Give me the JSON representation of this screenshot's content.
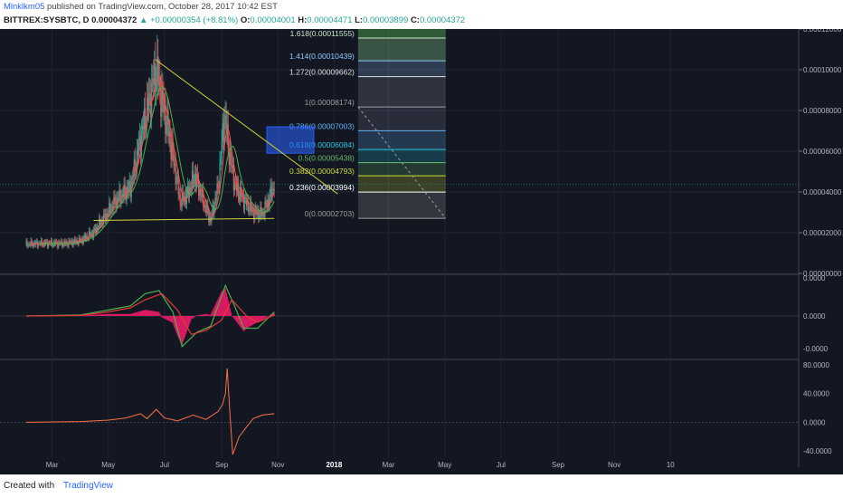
{
  "header": {
    "author": "Mlnklkm05",
    "published_text": "published on TradingView.com, October 28, 2017 10:42 EST",
    "symbol": "BITTREX:SYSBTC, D",
    "last": "0.00004372",
    "change": "▲ +0.00000354 (+8.81%)",
    "o_label": "O:",
    "o": "0.00004001",
    "h_label": "H:",
    "h": "0.00004471",
    "l_label": "L:",
    "l": "0.00003899",
    "c_label": "C:",
    "c": "0.00004372"
  },
  "footer": {
    "created_with": "Created with",
    "brand": "TradingView"
  },
  "chart_data": [
    {
      "type": "candlestick",
      "pane": "price",
      "ylim": [
        0,
        0.00012
      ],
      "y_ticks": [
        "0.00012000",
        "0.00010000",
        "0.00008000",
        "0.00006000",
        "0.00004000",
        "0.00002000",
        "0.00000000"
      ],
      "approx_close_path": [
        {
          "x": "2017-02-01",
          "y": 1.43e-05
        },
        {
          "x": "2017-02-20",
          "y": 1.47e-05
        },
        {
          "x": "2017-03-15",
          "y": 1.46e-05
        },
        {
          "x": "2017-04-01",
          "y": 1.6e-05
        },
        {
          "x": "2017-04-15",
          "y": 2e-05
        },
        {
          "x": "2017-05-01",
          "y": 3e-05
        },
        {
          "x": "2017-05-10",
          "y": 3.6e-05
        },
        {
          "x": "2017-05-25",
          "y": 4.2e-05
        },
        {
          "x": "2017-06-05",
          "y": 6.6e-05
        },
        {
          "x": "2017-06-15",
          "y": 8.6e-05
        },
        {
          "x": "2017-06-22",
          "y": 0.0001
        },
        {
          "x": "2017-06-28",
          "y": 8.5e-05
        },
        {
          "x": "2017-07-05",
          "y": 7e-05
        },
        {
          "x": "2017-07-12",
          "y": 5.2e-05
        },
        {
          "x": "2017-07-18",
          "y": 3.5e-05
        },
        {
          "x": "2017-07-25",
          "y": 3.8e-05
        },
        {
          "x": "2017-08-03",
          "y": 4.8e-05
        },
        {
          "x": "2017-08-12",
          "y": 3.5e-05
        },
        {
          "x": "2017-08-20",
          "y": 2.6e-05
        },
        {
          "x": "2017-08-28",
          "y": 4.2e-05
        },
        {
          "x": "2017-09-04",
          "y": 7.8e-05
        },
        {
          "x": "2017-09-10",
          "y": 5.6e-05
        },
        {
          "x": "2017-09-16",
          "y": 4.2e-05
        },
        {
          "x": "2017-09-25",
          "y": 3.6e-05
        },
        {
          "x": "2017-10-05",
          "y": 3e-05
        },
        {
          "x": "2017-10-15",
          "y": 2.9e-05
        },
        {
          "x": "2017-10-22",
          "y": 3.6e-05
        },
        {
          "x": "2017-10-28",
          "y": 4.37e-05
        }
      ],
      "fib_levels": [
        {
          "label": "1.618(0.00011555)",
          "value": 0.00011555,
          "color": "#c8e6c9"
        },
        {
          "label": "1.414(0.00010439)",
          "value": 0.00010439,
          "color": "#90caf9"
        },
        {
          "label": "1.272(0.00009662)",
          "value": 9.662e-05,
          "color": "#e0e0e0"
        },
        {
          "label": "1(0.00008174)",
          "value": 8.174e-05,
          "color": "#9e9e9e"
        },
        {
          "label": "0.786(0.00007003)",
          "value": 7.003e-05,
          "color": "#64b5f6"
        },
        {
          "label": "0.618(0.00006084)",
          "value": 6.084e-05,
          "color": "#26c6da"
        },
        {
          "label": "0.5(0.00005438)",
          "value": 5.438e-05,
          "color": "#66bb6a"
        },
        {
          "label": "0.382(0.00004793)",
          "value": 4.793e-05,
          "color": "#cddc39"
        },
        {
          "label": "0.236(0.00003994)",
          "value": 3.994e-05,
          "color": "#ffffff"
        },
        {
          "label": "0(0.00002703)",
          "value": 2.703e-05,
          "color": "#9e9e9e"
        }
      ],
      "trendlines": [
        {
          "name": "upper",
          "points": [
            {
              "x": "2017-06-21",
              "y": 0.000105
            },
            {
              "x": "2018-01-05",
              "y": 3.9e-05
            }
          ]
        },
        {
          "name": "lower",
          "points": [
            {
              "x": "2017-04-15",
              "y": 2.6e-05
            },
            {
              "x": "2017-10-28",
              "y": 2.7e-05
            }
          ]
        }
      ],
      "target_box": {
        "x0": "2017-10-20",
        "x1": "2017-12-10",
        "y0": 5.9e-05,
        "y1": 7.2e-05
      }
    },
    {
      "type": "line",
      "pane": "macd",
      "ylim": [
        -4e-05,
        4e-05
      ],
      "y_ticks": [
        "0.0000",
        "0.0000",
        "-0.0000"
      ],
      "series": [
        {
          "color": "#4caf50",
          "values": [
            {
              "x": "2017-02-01",
              "y": 0
            },
            {
              "x": "2017-04-01",
              "y": 1e-06
            },
            {
              "x": "2017-05-01",
              "y": 6e-06
            },
            {
              "x": "2017-05-25",
              "y": 1e-05
            },
            {
              "x": "2017-06-10",
              "y": 2.2e-05
            },
            {
              "x": "2017-06-25",
              "y": 2.5e-05
            },
            {
              "x": "2017-07-10",
              "y": 4e-06
            },
            {
              "x": "2017-07-20",
              "y": -3e-05
            },
            {
              "x": "2017-08-05",
              "y": -1.6e-05
            },
            {
              "x": "2017-08-20",
              "y": -1e-05
            },
            {
              "x": "2017-09-05",
              "y": 3e-05
            },
            {
              "x": "2017-09-15",
              "y": 1e-05
            },
            {
              "x": "2017-09-25",
              "y": -1.2e-05
            },
            {
              "x": "2017-10-10",
              "y": -1.2e-05
            },
            {
              "x": "2017-10-28",
              "y": 4e-06
            }
          ]
        },
        {
          "color": "#e53935",
          "values": [
            {
              "x": "2017-02-01",
              "y": 0
            },
            {
              "x": "2017-04-01",
              "y": 5e-07
            },
            {
              "x": "2017-05-01",
              "y": 4e-06
            },
            {
              "x": "2017-05-25",
              "y": 8e-06
            },
            {
              "x": "2017-06-10",
              "y": 1.6e-05
            },
            {
              "x": "2017-06-28",
              "y": 2.2e-05
            },
            {
              "x": "2017-07-15",
              "y": 6e-06
            },
            {
              "x": "2017-07-30",
              "y": -1.8e-05
            },
            {
              "x": "2017-08-15",
              "y": -1.4e-05
            },
            {
              "x": "2017-09-01",
              "y": -4e-06
            },
            {
              "x": "2017-09-12",
              "y": 1.6e-05
            },
            {
              "x": "2017-09-28",
              "y": 0.0
            },
            {
              "x": "2017-10-10",
              "y": -6e-06
            },
            {
              "x": "2017-10-28",
              "y": 1e-06
            }
          ]
        }
      ]
    },
    {
      "type": "line",
      "pane": "oscillator",
      "ylim": [
        -50,
        85
      ],
      "y_ticks": [
        "80.0000",
        "40.0000",
        "0.0000",
        "-40.0000"
      ],
      "series": [
        {
          "color": "#ff7043",
          "values": [
            {
              "x": "2017-02-01",
              "y": 0
            },
            {
              "x": "2017-04-01",
              "y": 1
            },
            {
              "x": "2017-05-01",
              "y": 3
            },
            {
              "x": "2017-05-20",
              "y": 6
            },
            {
              "x": "2017-06-05",
              "y": 12
            },
            {
              "x": "2017-06-12",
              "y": 5
            },
            {
              "x": "2017-06-22",
              "y": 18
            },
            {
              "x": "2017-07-01",
              "y": 6
            },
            {
              "x": "2017-07-15",
              "y": 2
            },
            {
              "x": "2017-08-01",
              "y": 10
            },
            {
              "x": "2017-08-15",
              "y": 4
            },
            {
              "x": "2017-08-28",
              "y": 15
            },
            {
              "x": "2017-09-02",
              "y": 25
            },
            {
              "x": "2017-09-05",
              "y": 40
            },
            {
              "x": "2017-09-07",
              "y": 75
            },
            {
              "x": "2017-09-10",
              "y": 10
            },
            {
              "x": "2017-09-13",
              "y": -45
            },
            {
              "x": "2017-09-20",
              "y": -20
            },
            {
              "x": "2017-10-05",
              "y": 5
            },
            {
              "x": "2017-10-15",
              "y": 10
            },
            {
              "x": "2017-10-28",
              "y": 12
            }
          ]
        }
      ]
    }
  ],
  "x_axis": {
    "ticks": [
      "Mar",
      "May",
      "Jul",
      "Sep",
      "Nov",
      "2018",
      "Mar",
      "May",
      "Jul",
      "Sep",
      "Nov",
      "10"
    ]
  }
}
